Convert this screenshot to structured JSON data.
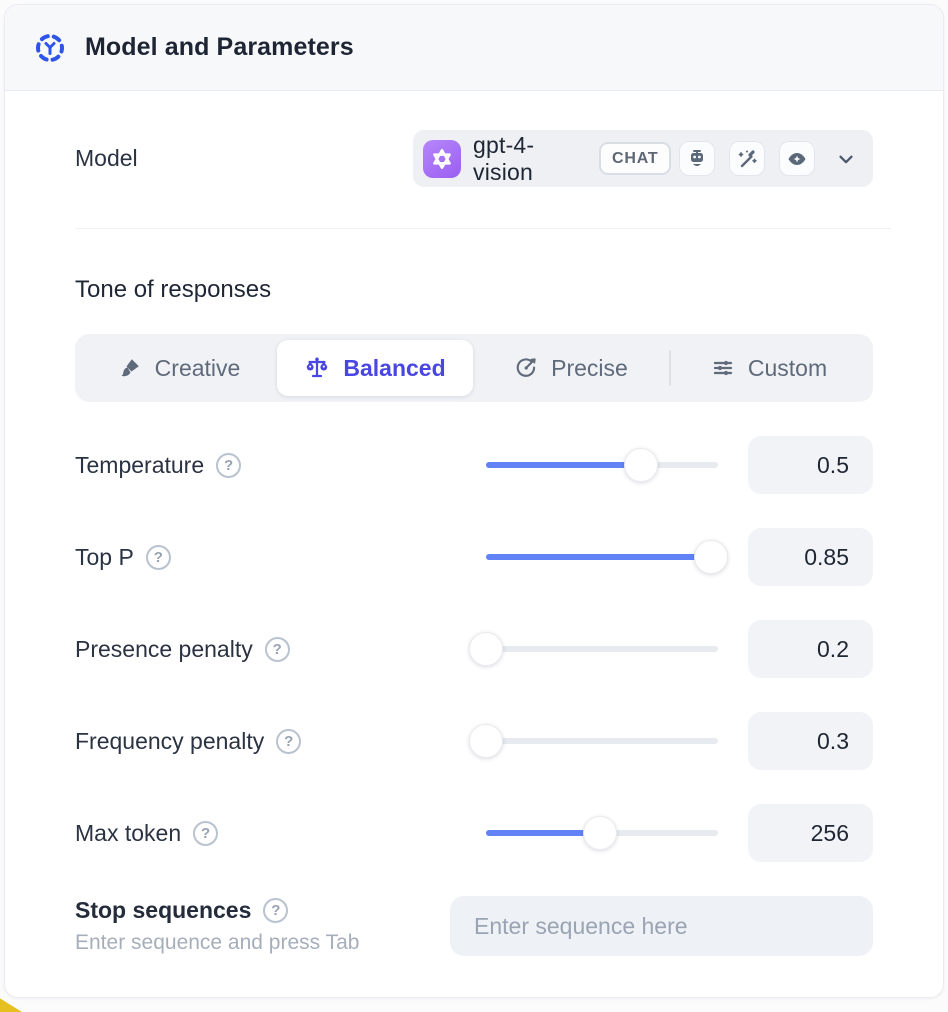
{
  "header": {
    "title": "Model and Parameters",
    "accent_color": "#2f55e8"
  },
  "model_row": {
    "label": "Model",
    "selected_model": "gpt-4-vision",
    "provider": "openai-logo",
    "badge": "CHAT",
    "capability_icons": [
      "robot-icon",
      "magic-wand-icon",
      "vision-eye-icon"
    ],
    "brand_color": "#a06cf5"
  },
  "tone": {
    "heading": "Tone of responses",
    "selected": "Balanced",
    "selected_color": "#4a46e2",
    "options": [
      {
        "label": "Creative",
        "icon": "paintbrush-icon",
        "selected": false
      },
      {
        "label": "Balanced",
        "icon": "scales-icon",
        "selected": true
      },
      {
        "label": "Precise",
        "icon": "target-icon",
        "selected": false
      },
      {
        "label": "Custom",
        "icon": "sliders-icon",
        "selected": false
      }
    ]
  },
  "params": {
    "slider_fill_color": "#6183f6",
    "sliders": [
      {
        "label": "Temperature",
        "value": "0.5",
        "fill_pct": 67
      },
      {
        "label": "Top P",
        "value": "0.85",
        "fill_pct": 97
      },
      {
        "label": "Presence penalty",
        "value": "0.2",
        "fill_pct": 0
      },
      {
        "label": "Frequency penalty",
        "value": "0.3",
        "fill_pct": 0
      },
      {
        "label": "Max token",
        "value": "256",
        "fill_pct": 49
      }
    ]
  },
  "stop_sequences": {
    "label": "Stop sequences",
    "hint": "Enter sequence and press Tab",
    "placeholder": "Enter sequence here",
    "value": ""
  }
}
